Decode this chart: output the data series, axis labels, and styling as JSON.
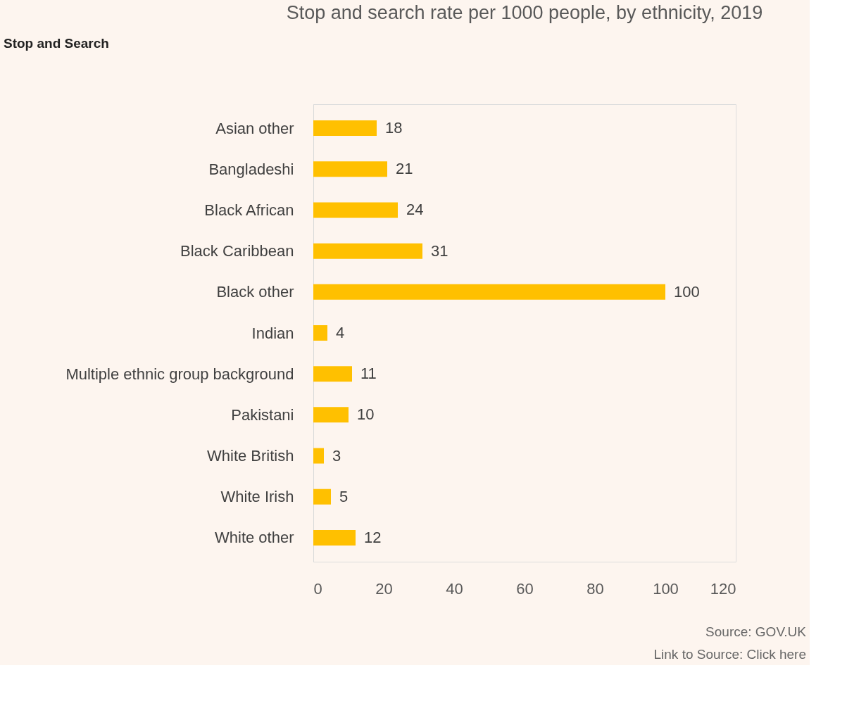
{
  "chart_data": {
    "type": "bar",
    "orientation": "horizontal",
    "title": "Stop and search rate per 1000 people, by ethnicity, 2019",
    "categories": [
      "Asian other",
      "Bangladeshi",
      "Black African",
      "Black Caribbean",
      "Black other",
      "Indian",
      "Multiple ethnic group background",
      "Pakistani",
      "White British",
      "White Irish",
      "White other"
    ],
    "values": [
      18,
      21,
      24,
      31,
      100,
      4,
      11,
      10,
      3,
      5,
      12
    ],
    "color": "#ffc000",
    "xlim": [
      0,
      120
    ],
    "xticks": [
      0,
      20,
      40,
      60,
      80,
      100,
      120
    ],
    "grid": false,
    "data_labels": true,
    "annotations": [
      "Stop and Search",
      "Source: GOV.UK",
      "Link to Source: Click here"
    ]
  }
}
